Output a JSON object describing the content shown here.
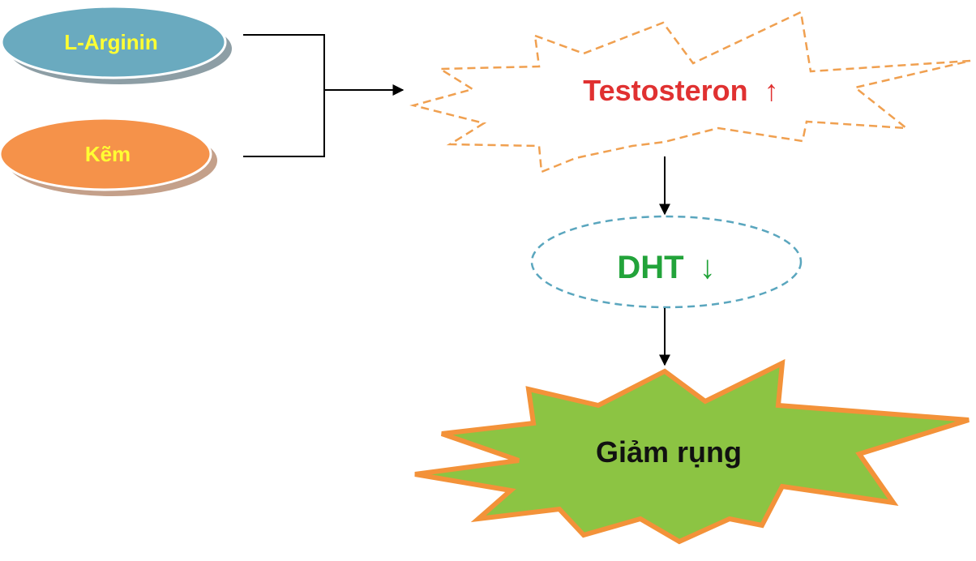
{
  "nodes": {
    "arginine": {
      "label": "L-Arginin",
      "fill": "#6aaabf",
      "shadow": "#8d9ea5",
      "text_color": "#ffff33"
    },
    "zinc": {
      "label": "Kẽm",
      "fill": "#f5924a",
      "shadow": "#c4a08a",
      "text_color": "#ffff33"
    },
    "testosterone": {
      "label": "Testosteron",
      "arrow": "↑",
      "text_color": "#e03131",
      "border_color": "#f0a050"
    },
    "dht": {
      "label": "DHT",
      "arrow": "↓",
      "text_color": "#22a33a",
      "border_color": "#5aa6be"
    },
    "result": {
      "label": "Giảm rụng",
      "text_color": "#111111",
      "fill": "#8cc443",
      "border_color": "#f39239"
    }
  },
  "connectors": {
    "line_color": "#000000"
  }
}
